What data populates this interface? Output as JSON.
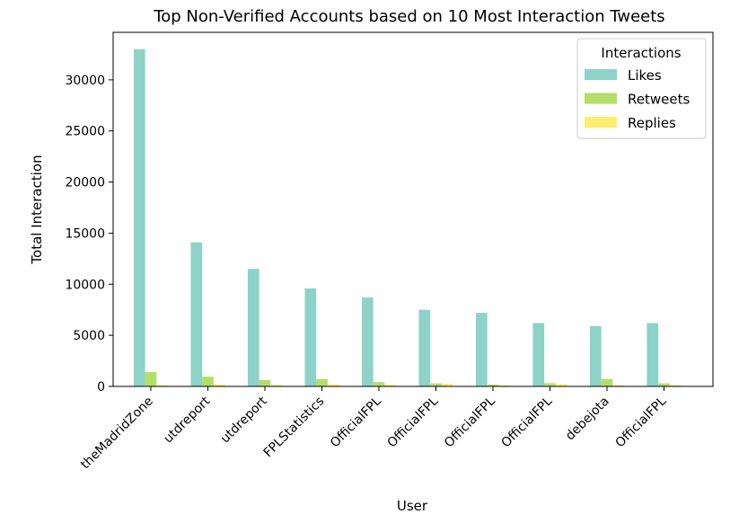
{
  "chart_data": {
    "type": "bar",
    "title": "Top Non-Verified Accounts based on 10 Most Interaction Tweets",
    "xlabel": "User",
    "ylabel": "Total Interaction",
    "categories": [
      "theMadridZone",
      "utdreport",
      "utdreport",
      "FPLStatistics",
      "OfficialFPL",
      "OfficialFPL",
      "OfficialFPL",
      "OfficialFPL",
      "debejota",
      "OfficialFPL"
    ],
    "series": [
      {
        "name": "Likes",
        "color": "#8dd3c7",
        "values": [
          33000,
          14100,
          11500,
          9600,
          8700,
          7500,
          7200,
          6200,
          5900,
          6200
        ]
      },
      {
        "name": "Retweets",
        "color": "#b3de69",
        "values": [
          1400,
          950,
          620,
          720,
          420,
          300,
          180,
          320,
          730,
          300
        ]
      },
      {
        "name": "Replies",
        "color": "#ffed6f",
        "values": [
          120,
          180,
          130,
          200,
          160,
          260,
          110,
          220,
          120,
          130
        ]
      }
    ],
    "yticks": [
      0,
      5000,
      10000,
      15000,
      20000,
      25000,
      30000
    ],
    "ylim": [
      0,
      34650
    ],
    "legend": {
      "title": "Interactions",
      "placement": "top-right"
    },
    "grid": false
  }
}
